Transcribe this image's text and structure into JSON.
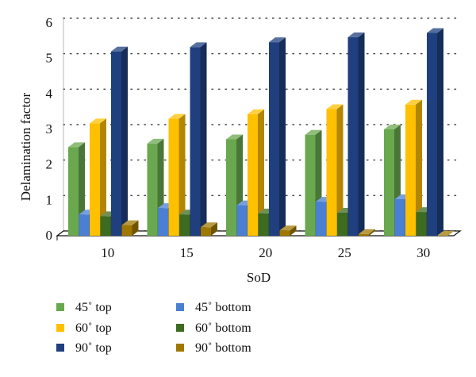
{
  "chart_data": {
    "type": "bar",
    "style": "3d-clustered",
    "xlabel": "SoD",
    "ylabel": "Delamination factor",
    "ylim": [
      0,
      6
    ],
    "yticks": [
      "0",
      "1",
      "2",
      "3",
      "4",
      "5",
      "6"
    ],
    "grid": "dotted-horizontal",
    "legend_position": "bottom",
    "categories": [
      "10",
      "15",
      "20",
      "25",
      "30"
    ],
    "series": [
      {
        "name": "45˚ top",
        "color": "#6aa84f",
        "values": [
          2.5,
          2.6,
          2.72,
          2.85,
          3.0
        ]
      },
      {
        "name": "45˚ bottom",
        "color": "#4a7fd4",
        "values": [
          0.6,
          0.78,
          0.86,
          0.96,
          1.03
        ]
      },
      {
        "name": "60˚ top",
        "color": "#ffc000",
        "values": [
          3.17,
          3.3,
          3.43,
          3.57,
          3.7
        ]
      },
      {
        "name": "60˚ bottom",
        "color": "#3d6b1f",
        "values": [
          0.55,
          0.6,
          0.63,
          0.65,
          0.67
        ]
      },
      {
        "name": "90˚ top",
        "color": "#1f3f7f",
        "values": [
          5.2,
          5.32,
          5.46,
          5.6,
          5.72
        ]
      },
      {
        "name": "90˚ bottom",
        "color": "#a07800",
        "values": [
          0.3,
          0.24,
          0.15,
          0.05,
          0.0
        ]
      }
    ]
  }
}
